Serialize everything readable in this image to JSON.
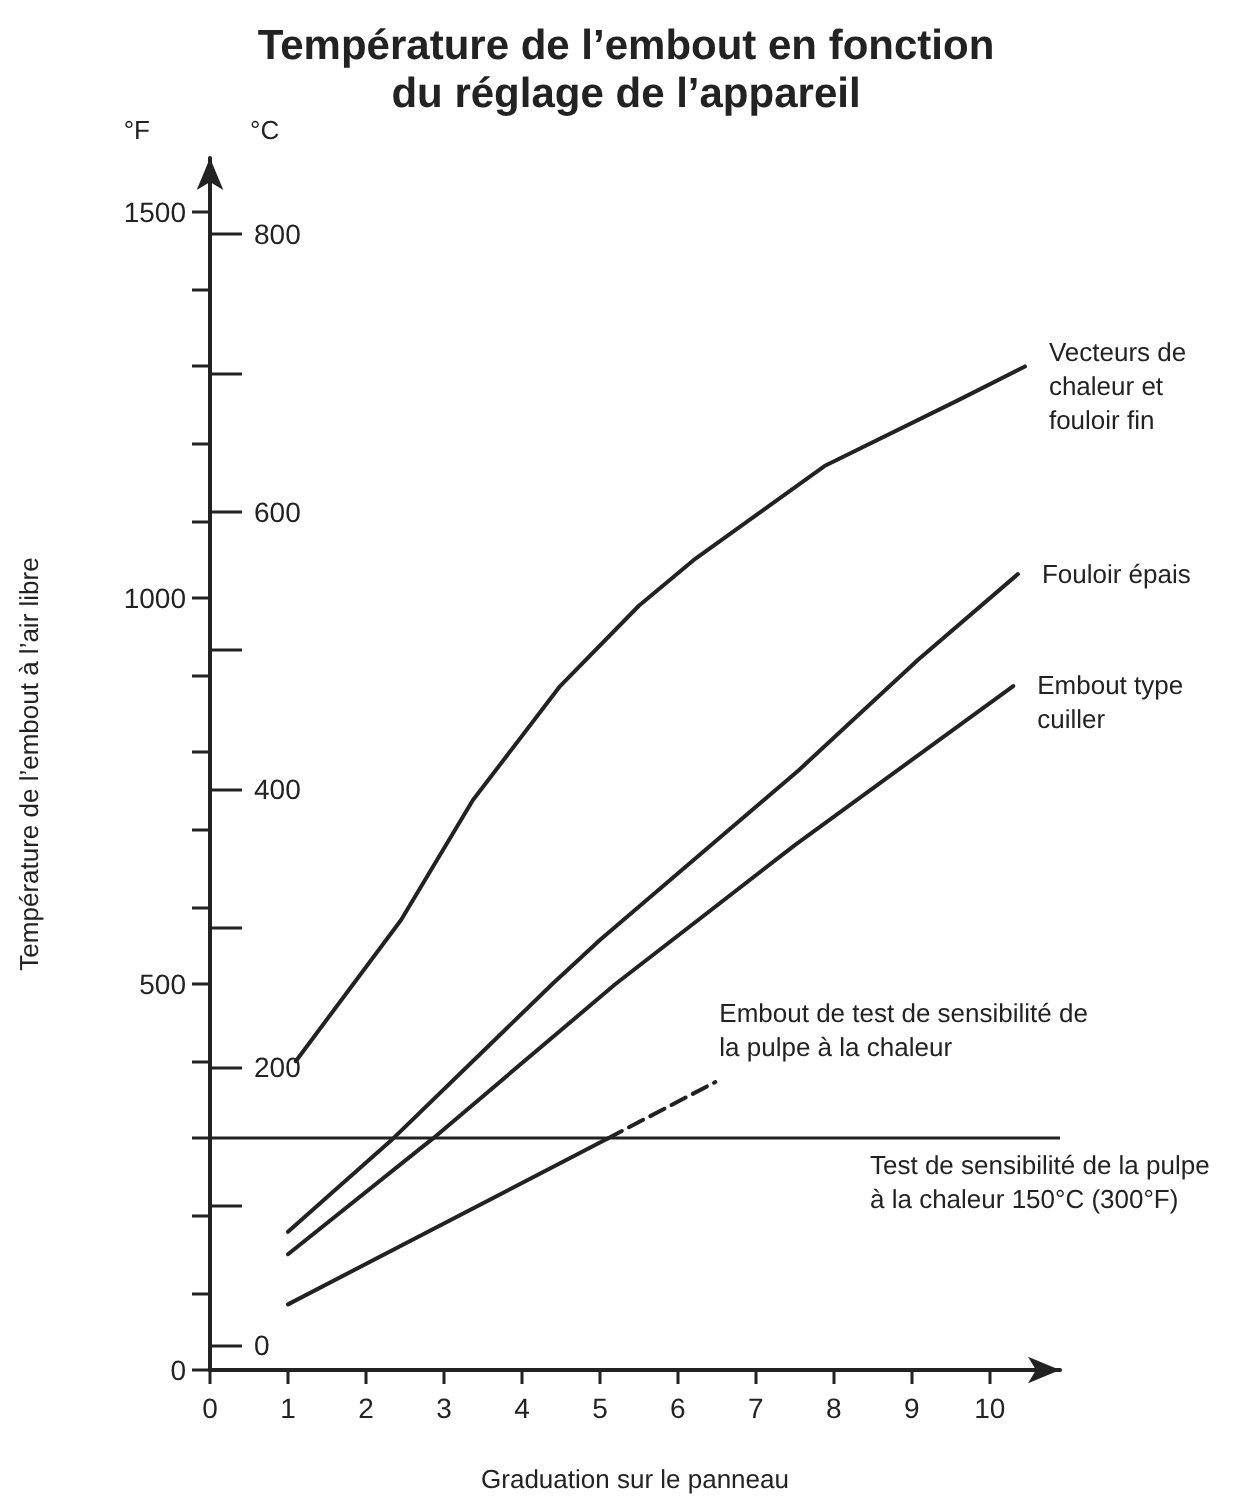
{
  "chart_data": {
    "type": "line",
    "title": "Température de l’embout en fonction\ndu réglage de l’appareil",
    "xlabel": "Graduation sur le panneau",
    "ylabel": "Température de l’embout à l’air libre",
    "annotations": [
      "°F",
      "°C"
    ],
    "xlim": [
      0,
      10.9
    ],
    "xticks": [
      0,
      1,
      2,
      3,
      4,
      5,
      6,
      7,
      8,
      9,
      10
    ],
    "ylim": [
      0,
      1570
    ],
    "yticks": [
      0,
      {
        "value": 100,
        "label": null
      },
      {
        "value": 200,
        "label": null
      },
      {
        "value": 300,
        "label": null
      },
      {
        "value": 400,
        "label": null
      },
      500,
      {
        "value": 600,
        "label": null
      },
      {
        "value": 700,
        "label": null
      },
      {
        "value": 800,
        "label": null
      },
      {
        "value": 900,
        "label": null
      },
      1000,
      {
        "value": 1100,
        "label": null
      },
      {
        "value": 1200,
        "label": null
      },
      {
        "value": 1300,
        "label": null
      },
      {
        "value": 1400,
        "label": null
      },
      1500
    ],
    "y2lim": [
      -17.8,
      854.4
    ],
    "y2ticks": [
      0,
      {
        "value": 100,
        "label": null
      },
      200,
      {
        "value": 300,
        "label": null
      },
      400,
      {
        "value": 500,
        "label": null
      },
      600,
      {
        "value": 700,
        "label": null
      },
      800
    ],
    "grid": false,
    "legend": false,
    "marker": "none",
    "series": [
      {
        "name": "Vecteurs de chaleur et fouloir fin",
        "color": "#222222",
        "x": [
          1.1,
          2.45,
          3.37,
          4.49,
          5.5,
          6.2,
          7.88,
          9.59,
          10.45
        ],
        "values": [
          400,
          583,
          738,
          886,
          990,
          1049,
          1171,
          1256,
          1300
        ]
      },
      {
        "name": "Fouloir épais",
        "color": "#222222",
        "x": [
          1.0,
          2.35,
          4.39,
          5.0,
          7.55,
          9.08,
          10.36
        ],
        "values": [
          179,
          300,
          500,
          557,
          777,
          920,
          1031
        ]
      },
      {
        "name": "Embout type cuiller",
        "color": "#222222",
        "x": [
          1.0,
          2.86,
          5.2,
          7.5,
          10.3
        ],
        "values": [
          150,
          300,
          500,
          680,
          886
        ]
      },
      {
        "color": "#222222",
        "x": [
          1.0,
          5.1
        ],
        "values": [
          85,
          300
        ]
      },
      {
        "name": "Embout de test de sensibilité de la pulpe à la chaleur",
        "color": "#222222",
        "line_style": "dashed",
        "x": [
          5.1,
          6.48
        ],
        "values": [
          300,
          373
        ]
      }
    ],
    "ref_lines": [
      {
        "axis": "y",
        "value": 300,
        "label": "Test de sensibilité de la pulpe à la chaleur 150°C (300°F)",
        "color": "#222222"
      }
    ]
  }
}
